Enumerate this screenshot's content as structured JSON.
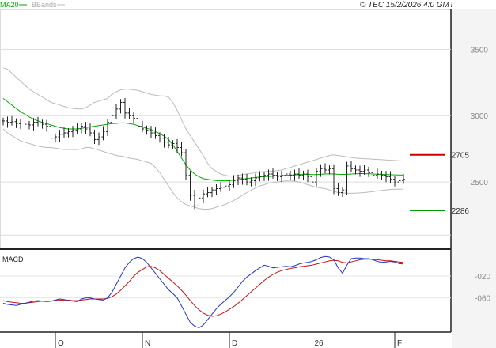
{
  "header": {
    "legend_ma": "MA20",
    "legend_bb": "BBands",
    "timestamp": "© TEC 15/2/2026 4:0 GMT"
  },
  "colors": {
    "ma": "#00aa00",
    "bands": "#bbbbbb",
    "price": "#222222",
    "macd": "#2233cc",
    "signal": "#cc1111",
    "resistance": "#cc0000",
    "support": "#009900"
  },
  "chart_data": [
    {
      "type": "line",
      "panel": "price",
      "title": "",
      "y_ticks": [
        "3500",
        "3000",
        "2500"
      ],
      "y_tick_values": [
        3500,
        3000,
        2500
      ],
      "ylim": [
        2000,
        3800
      ],
      "x_labels": [
        "O",
        "N",
        "D",
        "26",
        "F"
      ],
      "x_label_index": [
        12,
        32,
        52,
        71,
        90
      ],
      "levels": [
        {
          "name": "resistance",
          "value": 2705,
          "label": "2705"
        },
        {
          "name": "support",
          "value": 2286,
          "label": "2286"
        }
      ],
      "series": [
        {
          "key": "close",
          "values": [
            2960,
            2950,
            2955,
            2940,
            2945,
            2935,
            2930,
            2950,
            2945,
            2935,
            2920,
            2830,
            2840,
            2860,
            2870,
            2880,
            2890,
            2900,
            2920,
            2900,
            2870,
            2820,
            2840,
            2880,
            2950,
            3000,
            3050,
            3100,
            3020,
            3000,
            2980,
            2920,
            2900,
            2890,
            2870,
            2850,
            2830,
            2800,
            2780,
            2790,
            2760,
            2720,
            2550,
            2400,
            2320,
            2380,
            2410,
            2420,
            2440,
            2450,
            2460,
            2470,
            2480,
            2510,
            2530,
            2520,
            2500,
            2510,
            2530,
            2540,
            2550,
            2560,
            2550,
            2540,
            2550,
            2560,
            2550,
            2560,
            2550,
            2560,
            2540,
            2500,
            2580,
            2600,
            2590,
            2600,
            2450,
            2420,
            2440,
            2620,
            2600,
            2590,
            2580,
            2590,
            2570,
            2550,
            2560,
            2550,
            2540,
            2520,
            2500,
            2510,
            2520
          ]
        },
        {
          "key": "ma20",
          "values": [
            3130,
            3105,
            3080,
            3055,
            3030,
            3010,
            2990,
            2975,
            2960,
            2950,
            2940,
            2930,
            2920,
            2910,
            2905,
            2900,
            2900,
            2900,
            2905,
            2910,
            2915,
            2920,
            2925,
            2930,
            2935,
            2940,
            2942,
            2945,
            2945,
            2940,
            2935,
            2925,
            2915,
            2905,
            2895,
            2880,
            2865,
            2845,
            2820,
            2780,
            2730,
            2680,
            2630,
            2590,
            2560,
            2540,
            2525,
            2520,
            2515,
            2510,
            2510,
            2508,
            2510,
            2514,
            2518,
            2522,
            2526,
            2530,
            2534,
            2538,
            2540,
            2542,
            2544,
            2546,
            2548,
            2550,
            2552,
            2554,
            2556,
            2558,
            2558,
            2556,
            2556,
            2558,
            2560,
            2562,
            2560,
            2558,
            2557,
            2558,
            2560,
            2562,
            2563,
            2563,
            2562,
            2560,
            2558,
            2557,
            2556,
            2555,
            2554,
            2553,
            2552
          ]
        },
        {
          "key": "bb_upper",
          "values": [
            3360,
            3350,
            3320,
            3290,
            3260,
            3230,
            3200,
            3180,
            3160,
            3140,
            3120,
            3100,
            3090,
            3080,
            3070,
            3060,
            3055,
            3050,
            3050,
            3060,
            3080,
            3100,
            3110,
            3120,
            3130,
            3160,
            3180,
            3195,
            3200,
            3200,
            3195,
            3190,
            3180,
            3170,
            3160,
            3155,
            3150,
            3148,
            3140,
            3100,
            3040,
            2970,
            2900,
            2850,
            2800,
            2750,
            2700,
            2640,
            2600,
            2580,
            2560,
            2550,
            2545,
            2545,
            2550,
            2555,
            2560,
            2565,
            2570,
            2575,
            2578,
            2580,
            2582,
            2586,
            2590,
            2600,
            2610,
            2620,
            2630,
            2640,
            2650,
            2660,
            2670,
            2680,
            2690,
            2700,
            2705,
            2700,
            2695,
            2690,
            2685,
            2680,
            2678,
            2676,
            2674,
            2672,
            2670,
            2668,
            2666,
            2664,
            2662,
            2660,
            2658
          ]
        },
        {
          "key": "bb_lower",
          "values": [
            2900,
            2870,
            2850,
            2830,
            2810,
            2800,
            2790,
            2780,
            2770,
            2765,
            2760,
            2760,
            2755,
            2750,
            2745,
            2745,
            2745,
            2745,
            2750,
            2760,
            2760,
            2750,
            2740,
            2730,
            2720,
            2710,
            2700,
            2695,
            2690,
            2680,
            2675,
            2670,
            2660,
            2650,
            2640,
            2610,
            2570,
            2520,
            2470,
            2420,
            2380,
            2350,
            2330,
            2320,
            2310,
            2300,
            2295,
            2295,
            2300,
            2310,
            2320,
            2330,
            2345,
            2360,
            2380,
            2400,
            2420,
            2440,
            2455,
            2470,
            2480,
            2490,
            2495,
            2500,
            2505,
            2508,
            2508,
            2506,
            2500,
            2490,
            2480,
            2470,
            2460,
            2455,
            2450,
            2440,
            2430,
            2420,
            2418,
            2416,
            2415,
            2416,
            2418,
            2420,
            2424,
            2428,
            2432,
            2436,
            2440,
            2444,
            2446,
            2446,
            2446
          ]
        }
      ]
    },
    {
      "type": "line",
      "panel": "macd",
      "title": "MACD",
      "y_ticks": [
        "-020",
        "-060"
      ],
      "y_tick_values": [
        -20,
        -60
      ],
      "ylim": [
        -123,
        28
      ],
      "series": [
        {
          "key": "macd",
          "values": [
            -70,
            -72,
            -73,
            -74,
            -72,
            -70,
            -68,
            -66,
            -65,
            -66,
            -67,
            -66,
            -64,
            -62,
            -63,
            -65,
            -66,
            -67,
            -62,
            -60,
            -60,
            -62,
            -63,
            -64,
            -60,
            -50,
            -35,
            -20,
            -5,
            5,
            12,
            15,
            12,
            5,
            -5,
            -15,
            -25,
            -35,
            -45,
            -52,
            -60,
            -75,
            -90,
            -105,
            -112,
            -115,
            -110,
            -100,
            -90,
            -80,
            -72,
            -65,
            -58,
            -50,
            -40,
            -30,
            -22,
            -16,
            -10,
            -5,
            0,
            -2,
            -5,
            -4,
            -3,
            -2,
            -3,
            -1,
            2,
            4,
            5,
            7,
            10,
            14,
            16,
            15,
            10,
            -5,
            -15,
            0,
            12,
            13,
            13,
            12,
            12,
            10,
            7,
            5,
            6,
            7,
            6,
            3,
            2
          ]
        },
        {
          "key": "signal",
          "values": [
            -65,
            -67,
            -68,
            -69,
            -70,
            -70,
            -69,
            -68,
            -67,
            -66,
            -66,
            -66,
            -65,
            -64,
            -64,
            -64,
            -65,
            -65,
            -64,
            -63,
            -62,
            -62,
            -62,
            -62,
            -61,
            -58,
            -53,
            -46,
            -38,
            -30,
            -20,
            -13,
            -8,
            -3,
            -2,
            -5,
            -10,
            -17,
            -24,
            -31,
            -38,
            -46,
            -55,
            -65,
            -74,
            -82,
            -88,
            -92,
            -94,
            -93,
            -90,
            -86,
            -81,
            -76,
            -70,
            -63,
            -56,
            -49,
            -42,
            -35,
            -28,
            -22,
            -17,
            -13,
            -10,
            -8,
            -6,
            -5,
            -3,
            -2,
            -1,
            0,
            2,
            4,
            6,
            8,
            9,
            8,
            5,
            4,
            6,
            8,
            10,
            11,
            11,
            11,
            10,
            9,
            8,
            8,
            7,
            6,
            5
          ]
        }
      ]
    }
  ]
}
